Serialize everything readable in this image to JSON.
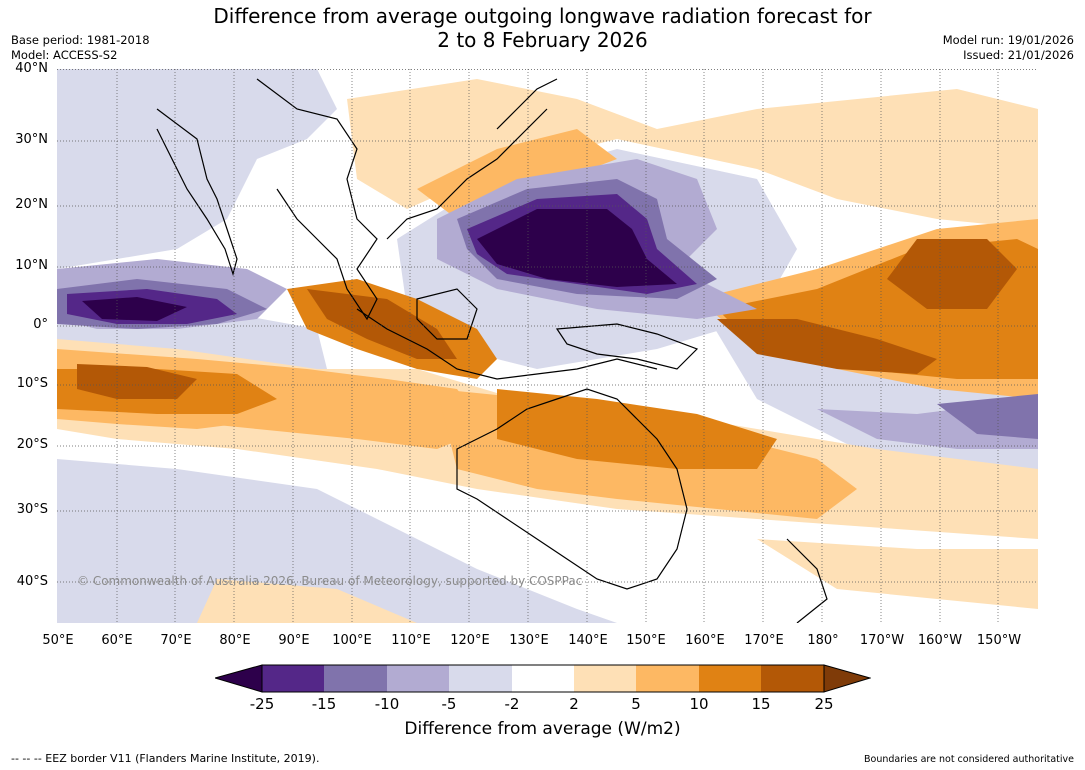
{
  "header": {
    "title_line1": "Difference from average outgoing longwave radiation forecast for",
    "title_line2": "2 to 8 February 2026",
    "base_period": "Base period: 1981-2018",
    "model": "Model: ACCESS-S2",
    "model_run": "Model run: 19/01/2026",
    "issued": "Issued: 21/01/2026"
  },
  "map": {
    "lat_labels": [
      "40°N",
      "30°N",
      "20°N",
      "10°N",
      "0°",
      "10°S",
      "20°S",
      "30°S",
      "40°S"
    ],
    "lon_labels": [
      "50°E",
      "60°E",
      "70°E",
      "80°E",
      "90°E",
      "100°E",
      "110°E",
      "120°E",
      "130°E",
      "140°E",
      "150°E",
      "160°E",
      "170°E",
      "180°",
      "170°W",
      "160°W",
      "150°W"
    ],
    "copyright": "© Commonwealth of Australia 2026, Bureau of Meteorology, supported by COSPPac"
  },
  "colorbar": {
    "ticks": [
      "-25",
      "-15",
      "-10",
      "-5",
      "-2",
      "2",
      "5",
      "10",
      "15",
      "25"
    ],
    "colors": {
      "under": "#2d004b",
      "c1": "#542788",
      "c2": "#8073ac",
      "c3": "#b2abd2",
      "c4": "#d8daeb",
      "c5": "#ffffff",
      "c6": "#fee0b6",
      "c7": "#fdb863",
      "c8": "#e08214",
      "c9": "#b35806",
      "over": "#7f3b08"
    },
    "label": "Difference from average (W/m2)"
  },
  "footer": {
    "eez_note": "-- -- -- EEZ border V11 (Flanders Marine Institute, 2019).",
    "disclaimer": "Boundaries are not considered authoritative"
  }
}
